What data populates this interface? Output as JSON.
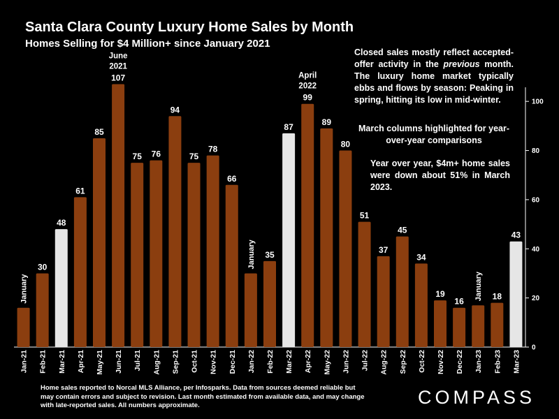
{
  "title": "Santa Clara County Luxury Home Sales by Month",
  "subtitle": "Homes Selling for $4 Million+ since January 2021",
  "notes": {
    "main_before": "Closed sales mostly reflect accepted-offer activity in the ",
    "main_em": "previous",
    "main_after": " month. The luxury home market typically ebbs and flows by season: Peaking in spring, hitting its low in mid-winter.",
    "march": "March columns highlighted for year-over-year comparisons",
    "yoy": "Year over year, $4m+ home sales were down  about 51% in March 2023."
  },
  "footnote": "Home sales reported to Norcal MLS Alliance, per Infosparks. Data from sources deemed reliable but may contain errors and subject to revision.  Last month estimated from available data, and may change with late-reported sales. All numbers approximate.",
  "logo": "COMPASS",
  "colors": {
    "bar": "#8B3E0F",
    "highlight": "#E6E6E6",
    "background": "#000000",
    "text": "#FFFFFF"
  },
  "chart_data": {
    "type": "bar",
    "categories": [
      "Jan-21",
      "Feb-21",
      "Mar-21",
      "Apr-21",
      "May-21",
      "Jun-21",
      "Jul-21",
      "Aug-21",
      "Sep-21",
      "Oct-21",
      "Nov-21",
      "Dec-21",
      "Jan-22",
      "Feb-22",
      "Mar-22",
      "Apr-22",
      "May-22",
      "Jun-22",
      "Jul-22",
      "Aug-22",
      "Sep-22",
      "Oct-22",
      "Nov-22",
      "Dec-22",
      "Jan-23",
      "Feb-23",
      "Mar-23"
    ],
    "values": [
      16,
      30,
      48,
      61,
      85,
      107,
      75,
      76,
      94,
      75,
      78,
      66,
      30,
      35,
      87,
      99,
      89,
      80,
      51,
      37,
      45,
      34,
      19,
      16,
      17,
      18,
      43
    ],
    "data_labels": [
      null,
      "30",
      "48",
      "61",
      "85",
      "107",
      "75",
      "76",
      "94",
      "75",
      "78",
      "66",
      null,
      "35",
      "87",
      "99",
      "89",
      "80",
      "51",
      "37",
      "45",
      "34",
      "19",
      "16",
      null,
      "18",
      "43"
    ],
    "highlighted": [
      "Mar-21",
      "Mar-22",
      "Mar-23"
    ],
    "annotations": [
      {
        "category": "Jan-21",
        "text": "January",
        "vertical": true
      },
      {
        "category": "Jan-22",
        "text": "January",
        "vertical": true
      },
      {
        "category": "Jan-23",
        "text": "January",
        "vertical": true
      },
      {
        "category": "Jun-21",
        "lines": [
          "June",
          "2021"
        ]
      },
      {
        "category": "Apr-22",
        "lines": [
          "April",
          "2022"
        ]
      }
    ],
    "y_axis": {
      "position": "right",
      "ticks": [
        0,
        20,
        40,
        60,
        80,
        100
      ]
    },
    "ylim": [
      0,
      110
    ],
    "xlabel": "",
    "ylabel": ""
  }
}
